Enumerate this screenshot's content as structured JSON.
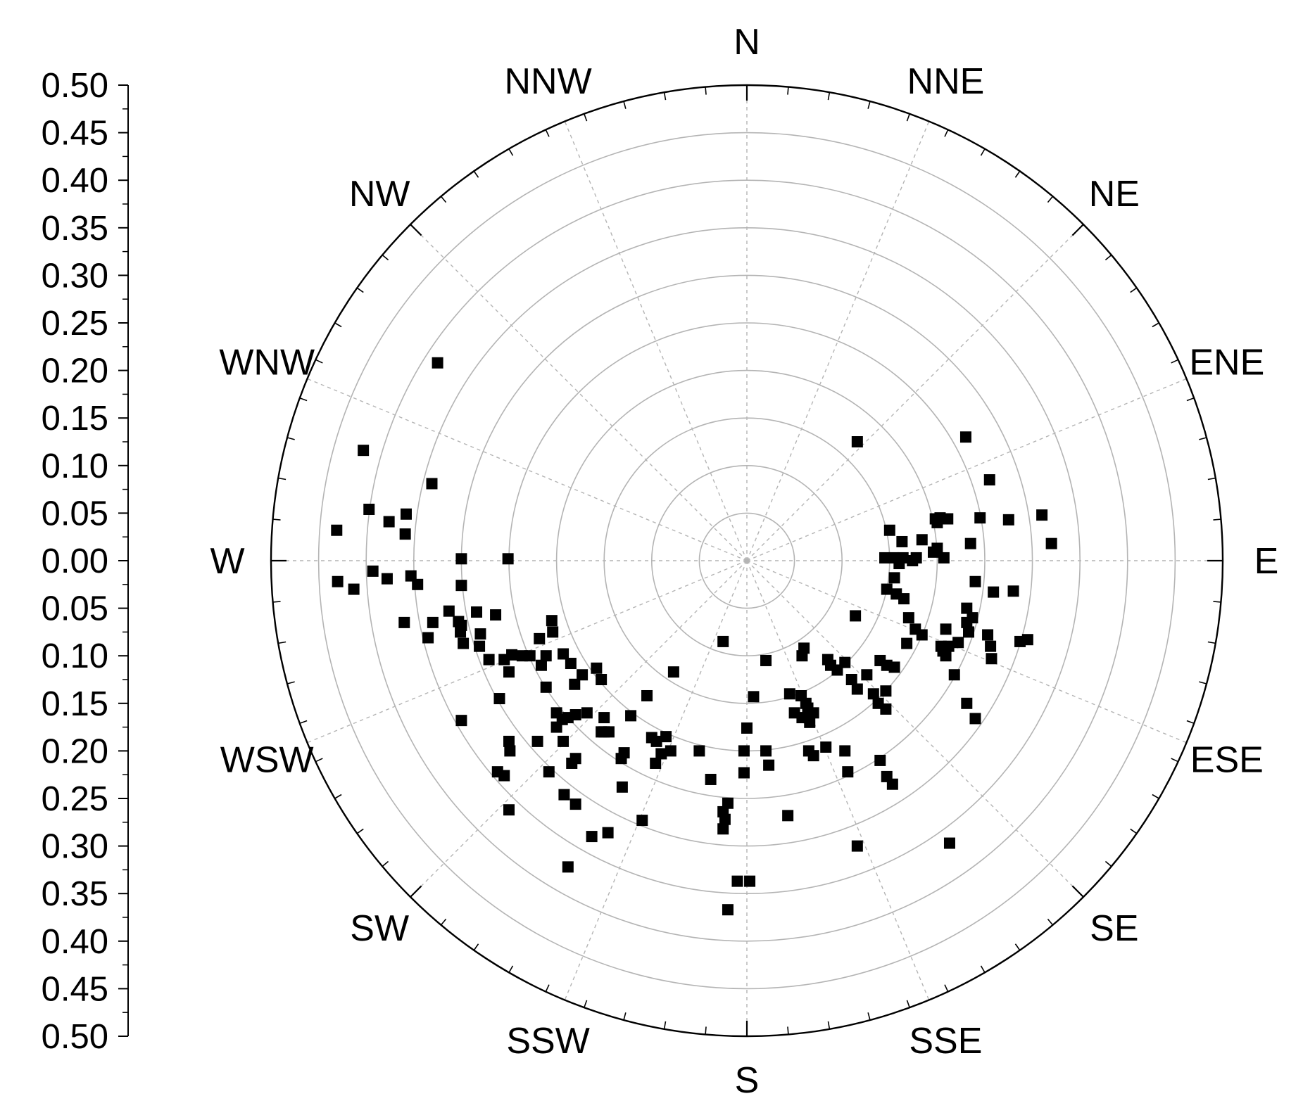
{
  "chart_data": {
    "type": "scatter",
    "subtype": "polar",
    "title": "",
    "radial_axis": {
      "min": 0,
      "max": 0.5,
      "tick_labels": [
        "0.50",
        "0.45",
        "0.40",
        "0.35",
        "0.30",
        "0.25",
        "0.20",
        "0.15",
        "0.10",
        "0.05",
        "0.00",
        "0.05",
        "0.10",
        "0.15",
        "0.20",
        "0.25",
        "0.30",
        "0.35",
        "0.40",
        "0.45",
        "0.50"
      ]
    },
    "directions": [
      "N",
      "NNE",
      "NE",
      "ENE",
      "E",
      "ESE",
      "SE",
      "SSE",
      "S",
      "SSW",
      "SW",
      "WSW",
      "W",
      "WNW",
      "NW",
      "NNW"
    ],
    "grid": true,
    "marker": "square",
    "marker_color": "#000000",
    "points": [
      [
        -0.325,
        0.208
      ],
      [
        -0.403,
        0.116
      ],
      [
        -0.331,
        0.081
      ],
      [
        -0.397,
        0.054
      ],
      [
        -0.376,
        0.041
      ],
      [
        -0.358,
        0.049
      ],
      [
        -0.359,
        0.028
      ],
      [
        -0.431,
        0.032
      ],
      [
        -0.3,
        0.002
      ],
      [
        -0.251,
        0.002
      ],
      [
        -0.393,
        -0.011
      ],
      [
        -0.378,
        -0.019
      ],
      [
        -0.353,
        -0.016
      ],
      [
        -0.346,
        -0.025
      ],
      [
        -0.43,
        -0.022
      ],
      [
        -0.413,
        -0.03
      ],
      [
        -0.3,
        -0.026
      ],
      [
        -0.313,
        -0.053
      ],
      [
        -0.33,
        -0.065
      ],
      [
        -0.264,
        -0.057
      ],
      [
        -0.303,
        -0.064
      ],
      [
        -0.284,
        -0.054
      ],
      [
        -0.3,
        -0.068
      ],
      [
        -0.36,
        -0.065
      ],
      [
        -0.335,
        -0.081
      ],
      [
        -0.301,
        -0.075
      ],
      [
        -0.28,
        -0.077
      ],
      [
        -0.298,
        -0.087
      ],
      [
        -0.281,
        -0.09
      ],
      [
        -0.271,
        -0.104
      ],
      [
        -0.255,
        -0.104
      ],
      [
        -0.247,
        -0.099
      ],
      [
        -0.236,
        -0.1
      ],
      [
        -0.25,
        -0.117
      ],
      [
        -0.228,
        -0.1
      ],
      [
        -0.211,
        -0.1
      ],
      [
        -0.216,
        -0.11
      ],
      [
        -0.218,
        -0.082
      ],
      [
        -0.204,
        -0.075
      ],
      [
        -0.205,
        -0.063
      ],
      [
        -0.193,
        -0.098
      ],
      [
        -0.185,
        -0.108
      ],
      [
        -0.173,
        -0.12
      ],
      [
        -0.158,
        -0.113
      ],
      [
        -0.153,
        -0.125
      ],
      [
        -0.211,
        -0.133
      ],
      [
        -0.181,
        -0.13
      ],
      [
        -0.26,
        -0.145
      ],
      [
        -0.3,
        -0.168
      ],
      [
        -0.2,
        -0.16
      ],
      [
        -0.194,
        -0.167
      ],
      [
        -0.2,
        -0.175
      ],
      [
        -0.188,
        -0.165
      ],
      [
        -0.18,
        -0.162
      ],
      [
        -0.15,
        -0.165
      ],
      [
        -0.168,
        -0.16
      ],
      [
        -0.15,
        -0.18
      ],
      [
        -0.153,
        -0.18
      ],
      [
        -0.145,
        -0.18
      ],
      [
        -0.122,
        -0.163
      ],
      [
        -0.105,
        -0.142
      ],
      [
        -0.077,
        -0.117
      ],
      [
        -0.025,
        -0.085
      ],
      [
        -0.25,
        -0.19
      ],
      [
        -0.249,
        -0.2
      ],
      [
        -0.22,
        -0.19
      ],
      [
        -0.193,
        -0.19
      ],
      [
        -0.184,
        -0.213
      ],
      [
        -0.18,
        -0.208
      ],
      [
        -0.132,
        -0.208
      ],
      [
        -0.129,
        -0.202
      ],
      [
        -0.1,
        -0.186
      ],
      [
        -0.095,
        -0.19
      ],
      [
        -0.085,
        -0.185
      ],
      [
        -0.09,
        -0.203
      ],
      [
        -0.096,
        -0.213
      ],
      [
        -0.08,
        -0.2
      ],
      [
        -0.05,
        -0.2
      ],
      [
        -0.262,
        -0.222
      ],
      [
        -0.255,
        -0.226
      ],
      [
        -0.208,
        -0.222
      ],
      [
        -0.192,
        -0.246
      ],
      [
        -0.18,
        -0.256
      ],
      [
        -0.131,
        -0.238
      ],
      [
        -0.25,
        -0.262
      ],
      [
        -0.146,
        -0.286
      ],
      [
        -0.163,
        -0.29
      ],
      [
        -0.11,
        -0.273
      ],
      [
        -0.188,
        -0.322
      ],
      [
        -0.038,
        -0.23
      ],
      [
        -0.02,
        -0.255
      ],
      [
        -0.025,
        -0.264
      ],
      [
        -0.023,
        -0.272
      ],
      [
        -0.025,
        -0.282
      ],
      [
        -0.003,
        -0.2
      ],
      [
        -0.003,
        -0.223
      ],
      [
        0.003,
        -0.337
      ],
      [
        -0.01,
        -0.337
      ],
      [
        -0.02,
        -0.367
      ],
      [
        0.02,
        -0.105
      ],
      [
        0.007,
        -0.143
      ],
      [
        0,
        -0.176
      ],
      [
        0.02,
        -0.2
      ],
      [
        0.023,
        -0.215
      ],
      [
        0.043,
        -0.268
      ],
      [
        0.06,
        -0.092
      ],
      [
        0.058,
        -0.1
      ],
      [
        0.045,
        -0.14
      ],
      [
        0.057,
        -0.142
      ],
      [
        0.062,
        -0.15
      ],
      [
        0.064,
        -0.155
      ],
      [
        0.07,
        -0.16
      ],
      [
        0.065,
        -0.165
      ],
      [
        0.05,
        -0.16
      ],
      [
        0.058,
        -0.165
      ],
      [
        0.066,
        -0.17
      ],
      [
        0.085,
        -0.104
      ],
      [
        0.088,
        -0.11
      ],
      [
        0.095,
        -0.115
      ],
      [
        0.103,
        -0.107
      ],
      [
        0.11,
        -0.125
      ],
      [
        0.116,
        -0.135
      ],
      [
        0.126,
        -0.12
      ],
      [
        0.138,
        -0.15
      ],
      [
        0.133,
        -0.14
      ],
      [
        0.14,
        -0.105
      ],
      [
        0.147,
        -0.11
      ],
      [
        0.155,
        -0.112
      ],
      [
        0.146,
        -0.137
      ],
      [
        0.146,
        -0.156
      ],
      [
        0.065,
        -0.2
      ],
      [
        0.07,
        -0.205
      ],
      [
        0.083,
        -0.196
      ],
      [
        0.103,
        -0.2
      ],
      [
        0.106,
        -0.222
      ],
      [
        0.14,
        -0.21
      ],
      [
        0.147,
        -0.227
      ],
      [
        0.153,
        -0.235
      ],
      [
        0.116,
        -0.3
      ],
      [
        0.114,
        -0.058
      ],
      [
        0.147,
        -0.03
      ],
      [
        0.157,
        -0.035
      ],
      [
        0.165,
        -0.04
      ],
      [
        0.155,
        -0.018
      ],
      [
        0.16,
        -0.003
      ],
      [
        0.174,
        0
      ],
      [
        0.178,
        0.003
      ],
      [
        0.164,
        0.003
      ],
      [
        0.154,
        0.003
      ],
      [
        0.145,
        0.003
      ],
      [
        0.163,
        0.02
      ],
      [
        0.15,
        0.032
      ],
      [
        0.2,
        0.013
      ],
      [
        0.196,
        0.009
      ],
      [
        0.207,
        0.003
      ],
      [
        0.184,
        0.022
      ],
      [
        0.198,
        0.044
      ],
      [
        0.203,
        0.045
      ],
      [
        0.211,
        0.044
      ],
      [
        0.2,
        0.04
      ],
      [
        0.235,
        0.018
      ],
      [
        0.245,
        0.045
      ],
      [
        0.275,
        0.043
      ],
      [
        0.31,
        0.048
      ],
      [
        0.32,
        0.018
      ],
      [
        0.255,
        0.085
      ],
      [
        0.23,
        0.13
      ],
      [
        0.116,
        0.125
      ],
      [
        0.24,
        -0.022
      ],
      [
        0.28,
        -0.032
      ],
      [
        0.259,
        -0.033
      ],
      [
        0.237,
        -0.06
      ],
      [
        0.17,
        -0.06
      ],
      [
        0.177,
        -0.072
      ],
      [
        0.209,
        -0.072
      ],
      [
        0.212,
        -0.09
      ],
      [
        0.233,
        -0.075
      ],
      [
        0.231,
        -0.065
      ],
      [
        0.231,
        -0.05
      ],
      [
        0.222,
        -0.086
      ],
      [
        0.253,
        -0.078
      ],
      [
        0.256,
        -0.09
      ],
      [
        0.257,
        -0.103
      ],
      [
        0.295,
        -0.083
      ],
      [
        0.287,
        -0.085
      ],
      [
        0.184,
        -0.078
      ],
      [
        0.209,
        -0.1
      ],
      [
        0.204,
        -0.09
      ],
      [
        0.168,
        -0.087
      ],
      [
        0.206,
        -0.095
      ],
      [
        0.218,
        -0.12
      ],
      [
        0.231,
        -0.15
      ],
      [
        0.24,
        -0.166
      ],
      [
        0.213,
        -0.297
      ]
    ]
  }
}
